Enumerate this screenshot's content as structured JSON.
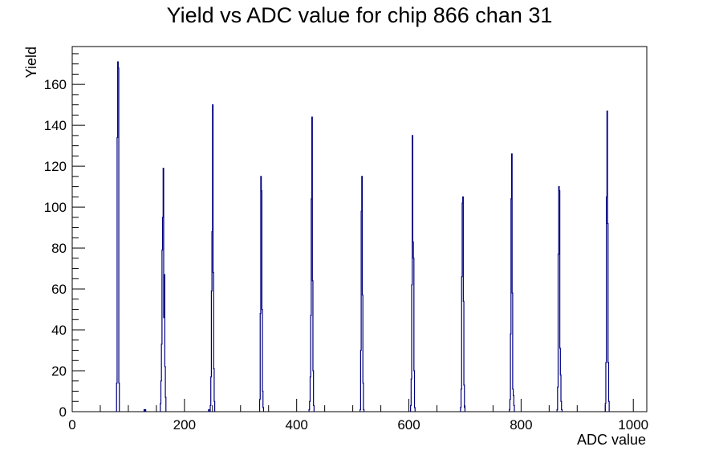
{
  "chart_data": {
    "type": "histogram",
    "title": "Yield vs ADC value for chip 866 chan 31",
    "xlabel": "ADC value",
    "ylabel": "Yield",
    "xlim": [
      0,
      1024
    ],
    "ylim": [
      0,
      178.5
    ],
    "x_ticks": [
      0,
      200,
      400,
      600,
      800,
      1000
    ],
    "y_ticks": [
      0,
      20,
      40,
      60,
      80,
      100,
      120,
      140,
      160
    ],
    "bin_width": 1,
    "line_color": "#00007f",
    "bins": [
      {
        "x": 79,
        "y": 14
      },
      {
        "x": 80,
        "y": 134
      },
      {
        "x": 81,
        "y": 171
      },
      {
        "x": 82,
        "y": 168
      },
      {
        "x": 83,
        "y": 14
      },
      {
        "x": 128,
        "y": 1
      },
      {
        "x": 130,
        "y": 1
      },
      {
        "x": 157,
        "y": 4
      },
      {
        "x": 158,
        "y": 15
      },
      {
        "x": 159,
        "y": 33
      },
      {
        "x": 160,
        "y": 79
      },
      {
        "x": 161,
        "y": 95
      },
      {
        "x": 162,
        "y": 119
      },
      {
        "x": 163,
        "y": 46
      },
      {
        "x": 164,
        "y": 67
      },
      {
        "x": 165,
        "y": 22
      },
      {
        "x": 166,
        "y": 7
      },
      {
        "x": 243,
        "y": 1
      },
      {
        "x": 246,
        "y": 3
      },
      {
        "x": 247,
        "y": 17
      },
      {
        "x": 248,
        "y": 59
      },
      {
        "x": 249,
        "y": 88
      },
      {
        "x": 250,
        "y": 150
      },
      {
        "x": 251,
        "y": 68
      },
      {
        "x": 252,
        "y": 21
      },
      {
        "x": 253,
        "y": 5
      },
      {
        "x": 334,
        "y": 6
      },
      {
        "x": 335,
        "y": 48
      },
      {
        "x": 336,
        "y": 115
      },
      {
        "x": 337,
        "y": 108
      },
      {
        "x": 338,
        "y": 50
      },
      {
        "x": 339,
        "y": 10
      },
      {
        "x": 340,
        "y": 2
      },
      {
        "x": 422,
        "y": 1
      },
      {
        "x": 423,
        "y": 5
      },
      {
        "x": 424,
        "y": 17
      },
      {
        "x": 425,
        "y": 47
      },
      {
        "x": 426,
        "y": 104
      },
      {
        "x": 427,
        "y": 144
      },
      {
        "x": 428,
        "y": 64
      },
      {
        "x": 429,
        "y": 20
      },
      {
        "x": 430,
        "y": 3
      },
      {
        "x": 513,
        "y": 1
      },
      {
        "x": 514,
        "y": 30
      },
      {
        "x": 515,
        "y": 98
      },
      {
        "x": 516,
        "y": 115
      },
      {
        "x": 517,
        "y": 57
      },
      {
        "x": 518,
        "y": 14
      },
      {
        "x": 519,
        "y": 1
      },
      {
        "x": 603,
        "y": 3
      },
      {
        "x": 604,
        "y": 16
      },
      {
        "x": 605,
        "y": 62
      },
      {
        "x": 606,
        "y": 135
      },
      {
        "x": 607,
        "y": 83
      },
      {
        "x": 608,
        "y": 75
      },
      {
        "x": 609,
        "y": 20
      },
      {
        "x": 610,
        "y": 2
      },
      {
        "x": 692,
        "y": 2
      },
      {
        "x": 693,
        "y": 11
      },
      {
        "x": 694,
        "y": 66
      },
      {
        "x": 695,
        "y": 102
      },
      {
        "x": 696,
        "y": 105
      },
      {
        "x": 697,
        "y": 54
      },
      {
        "x": 698,
        "y": 13
      },
      {
        "x": 699,
        "y": 2
      },
      {
        "x": 779,
        "y": 1
      },
      {
        "x": 780,
        "y": 6
      },
      {
        "x": 781,
        "y": 38
      },
      {
        "x": 782,
        "y": 104
      },
      {
        "x": 783,
        "y": 126
      },
      {
        "x": 784,
        "y": 58
      },
      {
        "x": 785,
        "y": 11
      },
      {
        "x": 786,
        "y": 8
      },
      {
        "x": 787,
        "y": 3
      },
      {
        "x": 864,
        "y": 1
      },
      {
        "x": 865,
        "y": 12
      },
      {
        "x": 866,
        "y": 77
      },
      {
        "x": 867,
        "y": 110
      },
      {
        "x": 868,
        "y": 108
      },
      {
        "x": 869,
        "y": 31
      },
      {
        "x": 870,
        "y": 18
      },
      {
        "x": 871,
        "y": 5
      },
      {
        "x": 872,
        "y": 1
      },
      {
        "x": 950,
        "y": 4
      },
      {
        "x": 951,
        "y": 24
      },
      {
        "x": 952,
        "y": 105
      },
      {
        "x": 953,
        "y": 147
      },
      {
        "x": 954,
        "y": 92
      },
      {
        "x": 955,
        "y": 24
      },
      {
        "x": 956,
        "y": 5
      }
    ]
  }
}
